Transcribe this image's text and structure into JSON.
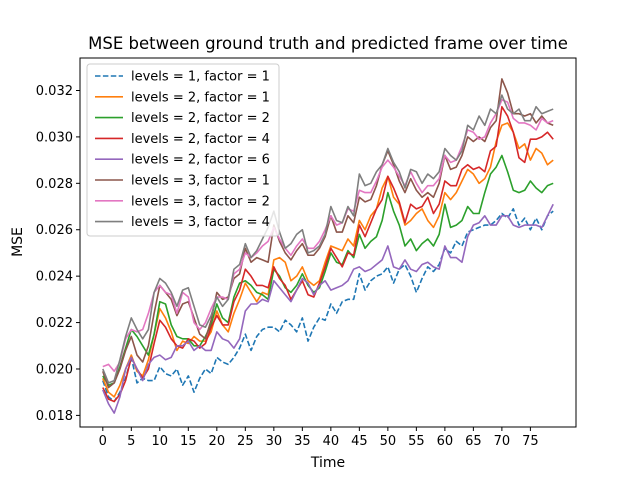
{
  "chart_data": {
    "type": "line",
    "title": "MSE between ground truth and predicted frame over time",
    "xlabel": "Time",
    "ylabel": "MSE",
    "xlim": [
      -4,
      83
    ],
    "ylim": [
      0.0175,
      0.0334
    ],
    "xticks": [
      0,
      5,
      10,
      15,
      20,
      25,
      30,
      35,
      40,
      45,
      50,
      55,
      60,
      65,
      70,
      75
    ],
    "yticks": [
      0.018,
      0.02,
      0.022,
      0.024,
      0.026,
      0.028,
      0.03,
      0.032
    ],
    "ytick_labels": [
      "0.018",
      "0.020",
      "0.022",
      "0.024",
      "0.026",
      "0.028",
      "0.030",
      "0.032"
    ],
    "grid": false,
    "legend_position": "top-left",
    "x": [
      0,
      1,
      2,
      3,
      4,
      5,
      6,
      7,
      8,
      9,
      10,
      11,
      12,
      13,
      14,
      15,
      16,
      17,
      18,
      19,
      20,
      21,
      22,
      23,
      24,
      25,
      26,
      27,
      28,
      29,
      30,
      31,
      32,
      33,
      34,
      35,
      36,
      37,
      38,
      39,
      40,
      41,
      42,
      43,
      44,
      45,
      46,
      47,
      48,
      49,
      50,
      51,
      52,
      53,
      54,
      55,
      56,
      57,
      58,
      59,
      60,
      61,
      62,
      63,
      64,
      65,
      66,
      67,
      68,
      69,
      70,
      71,
      72,
      73,
      74,
      75,
      76,
      77,
      78,
      79
    ],
    "series": [
      {
        "name": "levels = 1, factor = 1",
        "color": "#1f77b4",
        "dashed": true,
        "values": [
          0.0195,
          0.0188,
          0.0186,
          0.019,
          0.0196,
          0.0205,
          0.0194,
          0.0196,
          0.0195,
          0.0195,
          0.0201,
          0.0198,
          0.0197,
          0.02,
          0.0193,
          0.0197,
          0.019,
          0.0196,
          0.02,
          0.0198,
          0.0205,
          0.0203,
          0.0202,
          0.0205,
          0.0209,
          0.0215,
          0.0208,
          0.0214,
          0.0217,
          0.0218,
          0.0218,
          0.0216,
          0.0221,
          0.0219,
          0.0216,
          0.0222,
          0.0212,
          0.0218,
          0.0222,
          0.0221,
          0.0228,
          0.0224,
          0.0229,
          0.023,
          0.023,
          0.0241,
          0.0234,
          0.0238,
          0.024,
          0.0241,
          0.0244,
          0.0237,
          0.0243,
          0.0245,
          0.024,
          0.0233,
          0.0239,
          0.0244,
          0.0242,
          0.0245,
          0.0252,
          0.025,
          0.0255,
          0.0253,
          0.0259,
          0.026,
          0.0261,
          0.0262,
          0.0262,
          0.0264,
          0.0267,
          0.0265,
          0.0269,
          0.0262,
          0.0265,
          0.026,
          0.0265,
          0.026,
          0.0266,
          0.0268
        ]
      },
      {
        "name": "levels = 2, factor = 1",
        "color": "#ff7f0e",
        "dashed": false,
        "values": [
          0.0196,
          0.019,
          0.0188,
          0.0193,
          0.02,
          0.0206,
          0.0199,
          0.0197,
          0.0204,
          0.0215,
          0.0226,
          0.0222,
          0.0216,
          0.0208,
          0.0212,
          0.0211,
          0.0214,
          0.0212,
          0.0212,
          0.0216,
          0.0225,
          0.0219,
          0.0216,
          0.0224,
          0.023,
          0.0237,
          0.0233,
          0.0229,
          0.0233,
          0.0232,
          0.0247,
          0.0248,
          0.0246,
          0.0238,
          0.024,
          0.0244,
          0.0238,
          0.0236,
          0.0238,
          0.0246,
          0.0253,
          0.0252,
          0.0251,
          0.0256,
          0.0253,
          0.0264,
          0.026,
          0.0266,
          0.0269,
          0.0278,
          0.0283,
          0.0274,
          0.0271,
          0.0262,
          0.0264,
          0.0267,
          0.0269,
          0.0264,
          0.0261,
          0.0266,
          0.0276,
          0.0273,
          0.0276,
          0.0281,
          0.0286,
          0.0284,
          0.028,
          0.0282,
          0.0287,
          0.0298,
          0.0305,
          0.0306,
          0.0302,
          0.0295,
          0.0297,
          0.029,
          0.0295,
          0.0293,
          0.0288,
          0.029
        ]
      },
      {
        "name": "levels = 2, factor = 2",
        "color": "#2ca02c",
        "dashed": false,
        "values": [
          0.0197,
          0.0193,
          0.0194,
          0.0201,
          0.0209,
          0.0217,
          0.0214,
          0.021,
          0.0206,
          0.0215,
          0.0229,
          0.0228,
          0.0219,
          0.0214,
          0.0213,
          0.0213,
          0.021,
          0.021,
          0.0214,
          0.0219,
          0.0228,
          0.0222,
          0.022,
          0.0231,
          0.0237,
          0.0238,
          0.0236,
          0.0233,
          0.0232,
          0.023,
          0.0243,
          0.024,
          0.0235,
          0.0233,
          0.0236,
          0.0241,
          0.0236,
          0.0233,
          0.0235,
          0.0242,
          0.025,
          0.0246,
          0.0245,
          0.0251,
          0.0248,
          0.0258,
          0.0252,
          0.0255,
          0.0257,
          0.0264,
          0.0276,
          0.0268,
          0.0262,
          0.0253,
          0.0256,
          0.0251,
          0.0254,
          0.0256,
          0.0253,
          0.0258,
          0.0271,
          0.0261,
          0.0262,
          0.0264,
          0.027,
          0.0267,
          0.0267,
          0.0276,
          0.0284,
          0.0287,
          0.0292,
          0.0285,
          0.0277,
          0.0276,
          0.0277,
          0.0281,
          0.0278,
          0.0276,
          0.0279,
          0.028
        ]
      },
      {
        "name": "levels = 2, factor = 4",
        "color": "#d62728",
        "dashed": false,
        "values": [
          0.0192,
          0.0187,
          0.0186,
          0.0189,
          0.0195,
          0.0205,
          0.02,
          0.0196,
          0.02,
          0.0211,
          0.0221,
          0.0218,
          0.0213,
          0.021,
          0.0209,
          0.0213,
          0.0212,
          0.0209,
          0.0211,
          0.0218,
          0.0223,
          0.0219,
          0.0219,
          0.0229,
          0.0234,
          0.0243,
          0.024,
          0.0236,
          0.0236,
          0.0235,
          0.0244,
          0.0239,
          0.0236,
          0.023,
          0.0234,
          0.0238,
          0.0232,
          0.0231,
          0.0237,
          0.0244,
          0.0252,
          0.0248,
          0.0244,
          0.025,
          0.0249,
          0.0262,
          0.0257,
          0.0263,
          0.0269,
          0.0273,
          0.0283,
          0.0278,
          0.0272,
          0.0263,
          0.0271,
          0.0269,
          0.027,
          0.0274,
          0.0267,
          0.0271,
          0.0281,
          0.0279,
          0.0279,
          0.0286,
          0.0288,
          0.0286,
          0.0287,
          0.0285,
          0.0294,
          0.0296,
          0.0313,
          0.0309,
          0.0302,
          0.0291,
          0.0289,
          0.0299,
          0.0299,
          0.03,
          0.0302,
          0.0299
        ]
      },
      {
        "name": "levels = 2, factor = 6",
        "color": "#9467bd",
        "dashed": false,
        "values": [
          0.0191,
          0.0185,
          0.0181,
          0.0188,
          0.02,
          0.0205,
          0.02,
          0.0195,
          0.0202,
          0.0205,
          0.0206,
          0.0204,
          0.0205,
          0.021,
          0.021,
          0.0212,
          0.0208,
          0.021,
          0.0208,
          0.0208,
          0.0216,
          0.0213,
          0.0212,
          0.0209,
          0.0213,
          0.0225,
          0.0228,
          0.0228,
          0.023,
          0.0229,
          0.0238,
          0.0235,
          0.0232,
          0.0229,
          0.0234,
          0.0239,
          0.0237,
          0.0232,
          0.0236,
          0.0238,
          0.0234,
          0.0235,
          0.0236,
          0.0238,
          0.0243,
          0.0244,
          0.0242,
          0.0243,
          0.0245,
          0.0247,
          0.0253,
          0.0244,
          0.0243,
          0.0247,
          0.0243,
          0.0242,
          0.0245,
          0.0246,
          0.0244,
          0.0243,
          0.0253,
          0.0248,
          0.0248,
          0.0246,
          0.0257,
          0.0262,
          0.0263,
          0.0266,
          0.0262,
          0.0262,
          0.0266,
          0.0266,
          0.0262,
          0.0261,
          0.0262,
          0.0262,
          0.0262,
          0.0261,
          0.0266,
          0.0271
        ]
      },
      {
        "name": "levels = 3, factor = 1",
        "color": "#8c564b",
        "dashed": false,
        "values": [
          0.0199,
          0.0192,
          0.0194,
          0.02,
          0.0208,
          0.0214,
          0.0206,
          0.0203,
          0.021,
          0.0224,
          0.0236,
          0.0233,
          0.023,
          0.0223,
          0.0228,
          0.0229,
          0.0222,
          0.0215,
          0.0213,
          0.0221,
          0.0233,
          0.023,
          0.0231,
          0.0239,
          0.0241,
          0.0252,
          0.0246,
          0.0248,
          0.0247,
          0.0246,
          0.0262,
          0.0255,
          0.025,
          0.0247,
          0.0251,
          0.0254,
          0.0249,
          0.0249,
          0.0252,
          0.0257,
          0.0266,
          0.0259,
          0.0259,
          0.0266,
          0.0263,
          0.0274,
          0.0272,
          0.0273,
          0.0279,
          0.0288,
          0.0294,
          0.0288,
          0.0281,
          0.0276,
          0.0282,
          0.0277,
          0.0274,
          0.0276,
          0.0274,
          0.028,
          0.0292,
          0.0286,
          0.0287,
          0.0292,
          0.03,
          0.0298,
          0.03,
          0.0298,
          0.0304,
          0.0307,
          0.0325,
          0.0319,
          0.031,
          0.031,
          0.0309,
          0.031,
          0.0306,
          0.0309,
          0.0306,
          0.0305
        ]
      },
      {
        "name": "levels = 3, factor = 2",
        "color": "#e377c2",
        "dashed": false,
        "values": [
          0.0201,
          0.0202,
          0.0199,
          0.0203,
          0.0213,
          0.0217,
          0.0216,
          0.0217,
          0.0224,
          0.0233,
          0.0236,
          0.0233,
          0.0232,
          0.0224,
          0.0233,
          0.0231,
          0.022,
          0.0217,
          0.022,
          0.0226,
          0.0231,
          0.0231,
          0.023,
          0.0241,
          0.0243,
          0.025,
          0.0248,
          0.025,
          0.0253,
          0.0255,
          0.0261,
          0.0256,
          0.0252,
          0.0249,
          0.0253,
          0.0256,
          0.0252,
          0.0252,
          0.0255,
          0.026,
          0.0266,
          0.0262,
          0.0263,
          0.0269,
          0.0268,
          0.0277,
          0.0276,
          0.0276,
          0.0281,
          0.0287,
          0.029,
          0.0287,
          0.0283,
          0.0279,
          0.0285,
          0.028,
          0.0276,
          0.0279,
          0.0279,
          0.0282,
          0.0292,
          0.0289,
          0.029,
          0.0296,
          0.0303,
          0.0302,
          0.0299,
          0.03,
          0.0306,
          0.031,
          0.0316,
          0.0315,
          0.0308,
          0.0306,
          0.0306,
          0.0305,
          0.0303,
          0.0308,
          0.0306,
          0.0307
        ]
      },
      {
        "name": "levels = 3, factor = 4",
        "color": "#7f7f7f",
        "dashed": false,
        "values": [
          0.02,
          0.0194,
          0.0195,
          0.0204,
          0.0214,
          0.0222,
          0.0217,
          0.0213,
          0.0217,
          0.0233,
          0.0239,
          0.0237,
          0.0233,
          0.0227,
          0.0234,
          0.0235,
          0.0227,
          0.0219,
          0.0218,
          0.0223,
          0.0231,
          0.0227,
          0.023,
          0.0243,
          0.0245,
          0.0254,
          0.0248,
          0.0251,
          0.0256,
          0.0261,
          0.0268,
          0.0259,
          0.0252,
          0.0254,
          0.0258,
          0.026,
          0.025,
          0.0251,
          0.0253,
          0.0258,
          0.027,
          0.0264,
          0.0263,
          0.027,
          0.0266,
          0.0284,
          0.0279,
          0.028,
          0.0285,
          0.0288,
          0.0295,
          0.0289,
          0.0285,
          0.0278,
          0.0286,
          0.0285,
          0.028,
          0.0284,
          0.0282,
          0.0285,
          0.0295,
          0.0292,
          0.029,
          0.0294,
          0.0305,
          0.0303,
          0.0309,
          0.0305,
          0.0312,
          0.031,
          0.0318,
          0.0312,
          0.031,
          0.0312,
          0.0307,
          0.0307,
          0.0313,
          0.031,
          0.0311,
          0.0312
        ]
      }
    ]
  }
}
